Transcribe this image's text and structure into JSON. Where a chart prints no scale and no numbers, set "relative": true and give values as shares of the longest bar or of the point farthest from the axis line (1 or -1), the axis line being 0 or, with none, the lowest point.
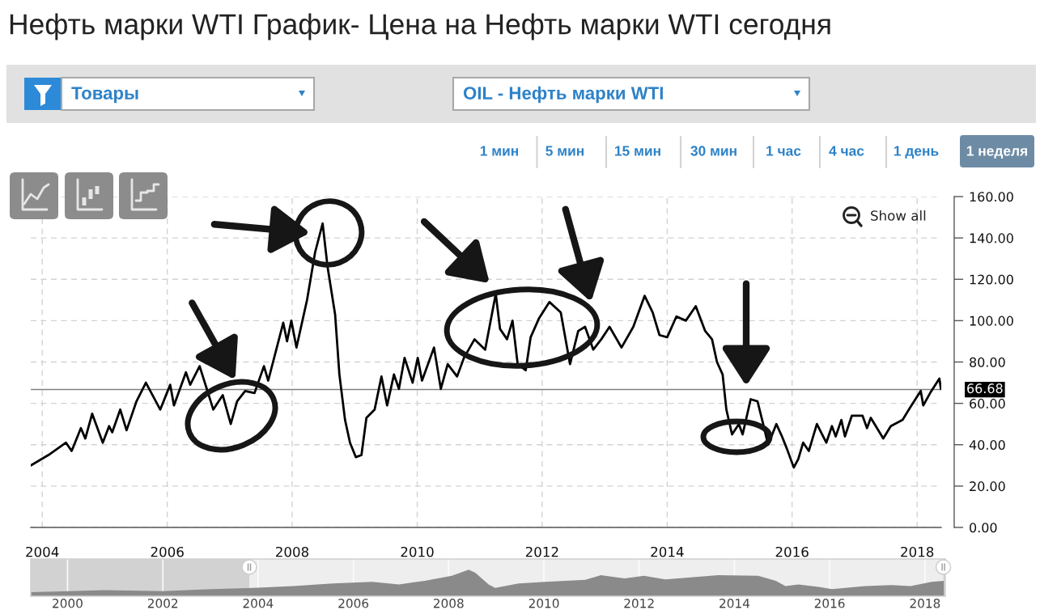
{
  "chart_data": [
    {
      "type": "line",
      "title": "Нефть марки WTI График- Цена на Нефть марки WTI сегодня",
      "annotations": [
        "Товары",
        "OIL - Нефть марки WTI",
        "1 мин",
        "5 мин",
        "15 мин",
        "30 мин",
        "1 час",
        "4 час",
        "1 день",
        "1 неделя",
        "Show all"
      ],
      "x": [
        "2003-10-27",
        "2004-02-06",
        "2004-05-19",
        "2004-06-21",
        "2004-08-14",
        "2004-09-09",
        "2004-10-19",
        "2004-12-20",
        "2005-01-26",
        "2005-02-13",
        "2005-04-01",
        "2005-05-08",
        "2005-07-05",
        "2005-08-29",
        "2005-11-21",
        "2006-01-18",
        "2006-02-09",
        "2006-04-20",
        "2006-05-15",
        "2006-07-09",
        "2006-09-27",
        "2006-11-21",
        "2007-01-07",
        "2007-02-13",
        "2007-04-01",
        "2007-05-26",
        "2007-07-20",
        "2007-08-14",
        "2007-11-10",
        "2007-12-02",
        "2007-12-27",
        "2008-01-26",
        "2008-03-28",
        "2008-05-14",
        "2008-06-27",
        "2008-07-26",
        "2008-09-08",
        "2008-10-03",
        "2008-11-05",
        "2008-12-04",
        "2009-01-07",
        "2009-02-09",
        "2009-03-10",
        "2009-04-27",
        "2009-06-06",
        "2009-07-09",
        "2009-08-18",
        "2009-09-16",
        "2009-10-19",
        "2009-12-05",
        "2010-01-04",
        "2010-01-29",
        "2010-04-09",
        "2010-05-19",
        "2010-06-28",
        "2010-08-22",
        "2010-10-01",
        "2010-12-02",
        "2011-02-02",
        "2011-04-05",
        "2011-04-30",
        "2011-06-10",
        "2011-07-12",
        "2011-08-11",
        "2011-09-27",
        "2011-10-26",
        "2011-12-13",
        "2012-02-13",
        "2012-04-19",
        "2012-06-12",
        "2012-07-30",
        "2012-09-08",
        "2012-10-26",
        "2012-12-12",
        "2013-01-29",
        "2013-04-09",
        "2013-06-17",
        "2013-08-22",
        "2013-10-08",
        "2013-11-17",
        "2014-01-01",
        "2014-02-24",
        "2014-04-20",
        "2014-06-17",
        "2014-08-11",
        "2014-09-20",
        "2014-10-19",
        "2014-11-21",
        "2014-12-13",
        "2015-01-15",
        "2015-02-24",
        "2015-03-18",
        "2015-05-04",
        "2015-06-13",
        "2015-07-16",
        "2015-08-14",
        "2015-10-01",
        "2015-11-03",
        "2015-12-02",
        "2016-01-11",
        "2016-02-06",
        "2016-03-06",
        "2016-04-08",
        "2016-05-25",
        "2016-07-19",
        "2016-08-21",
        "2016-09-12",
        "2016-10-15",
        "2016-11-05",
        "2016-12-15",
        "2017-02-16",
        "2017-03-14",
        "2017-04-05",
        "2017-06-17",
        "2017-07-31",
        "2017-10-08",
        "2017-11-21",
        "2018-01-22",
        "2018-02-06",
        "2018-03-18",
        "2018-05-11",
        "2018-05-20"
      ],
      "series": [
        {
          "color": "#000000",
          "values": [
            30,
            35,
            41,
            37,
            48,
            43,
            55,
            41,
            49,
            46,
            57,
            47,
            61,
            70,
            57,
            69,
            59,
            75,
            69,
            78,
            57,
            64,
            50,
            61,
            66,
            65,
            78,
            71,
            99,
            90,
            100,
            87,
            110,
            133,
            147,
            126,
            103,
            74,
            52,
            41,
            34,
            35,
            53,
            57,
            73,
            59,
            74,
            67,
            82,
            70,
            82,
            71,
            87,
            67,
            79,
            73,
            82,
            91,
            86,
            113,
            96,
            91,
            100,
            79,
            76,
            92,
            101,
            109,
            104,
            79,
            95,
            97,
            86,
            91,
            97,
            87,
            97,
            112,
            104,
            93,
            92,
            102,
            100,
            107,
            95,
            91,
            80,
            74,
            57,
            45,
            50,
            45,
            62,
            61,
            50,
            40,
            50,
            44,
            38,
            29,
            33,
            41,
            37,
            50,
            41,
            49,
            44,
            52,
            44,
            54,
            54,
            48,
            53,
            43,
            49,
            52,
            58,
            66,
            59,
            65,
            72,
            67
          ]
        }
      ],
      "line_style": "solid",
      "xlim": [
        "2003-10-26",
        "2018-05-22"
      ],
      "xticks": [
        "2004",
        "2006",
        "2008",
        "2010",
        "2012",
        "2014",
        "2016",
        "2018"
      ],
      "ylim": [
        0,
        160
      ],
      "yticks": [
        {
          "value": 0,
          "label": "0.00"
        },
        {
          "value": 20,
          "label": "20.00"
        },
        {
          "value": 40,
          "label": "40.00"
        },
        {
          "value": 60,
          "label": "60.00"
        },
        {
          "value": 80,
          "label": "80.00"
        },
        {
          "value": 100,
          "label": "100.00"
        },
        {
          "value": 120,
          "label": "120.00"
        },
        {
          "value": 140,
          "label": "140.00"
        },
        {
          "value": 160,
          "label": "160.00"
        }
      ],
      "grid": true,
      "ref_lines": [
        {
          "axis": "y",
          "value": 66.68,
          "label": "66.68",
          "color": "#808080"
        }
      ]
    },
    {
      "type": "area",
      "relative": true,
      "x": [
        "1999-03-25",
        "2000-01-20",
        "2000-10-05",
        "2002-01-01",
        "2002-10-20",
        "2003-11-25",
        "2004-09-24",
        "2005-07-27",
        "2006-05-27",
        "2006-12-17",
        "2007-07-02",
        "2008-01-26",
        "2008-06-03",
        "2008-07-24",
        "2008-11-03",
        "2008-12-24",
        "2009-06-21",
        "2010-01-12",
        "2010-11-14",
        "2011-03-15",
        "2011-09-13",
        "2012-02-07",
        "2012-07-20",
        "2013-08-29",
        "2014-07-02",
        "2014-11-14",
        "2015-01-27",
        "2015-05-08",
        "2015-10-08",
        "2016-01-19",
        "2016-09-27",
        "2017-04-20",
        "2017-09-13",
        "2018-02-21",
        "2018-05-26"
      ],
      "series": [
        {
          "color": "#8a8a8a",
          "values": [
            0.15,
            0.19,
            0.23,
            0.19,
            0.25,
            0.31,
            0.38,
            0.48,
            0.54,
            0.44,
            0.58,
            0.77,
            1,
            0.88,
            0.44,
            0.31,
            0.48,
            0.54,
            0.62,
            0.79,
            0.67,
            0.77,
            0.63,
            0.79,
            0.77,
            0.58,
            0.38,
            0.44,
            0.35,
            0.27,
            0.38,
            0.42,
            0.38,
            0.54,
            0.58
          ]
        }
      ],
      "xlim": [
        "1999-03-25",
        "2018-06-06"
      ],
      "xticks": [
        "2000",
        "2002",
        "2004",
        "2006",
        "2008",
        "2010",
        "2012",
        "2014",
        "2016",
        "2018"
      ],
      "grid": "x"
    }
  ]
}
